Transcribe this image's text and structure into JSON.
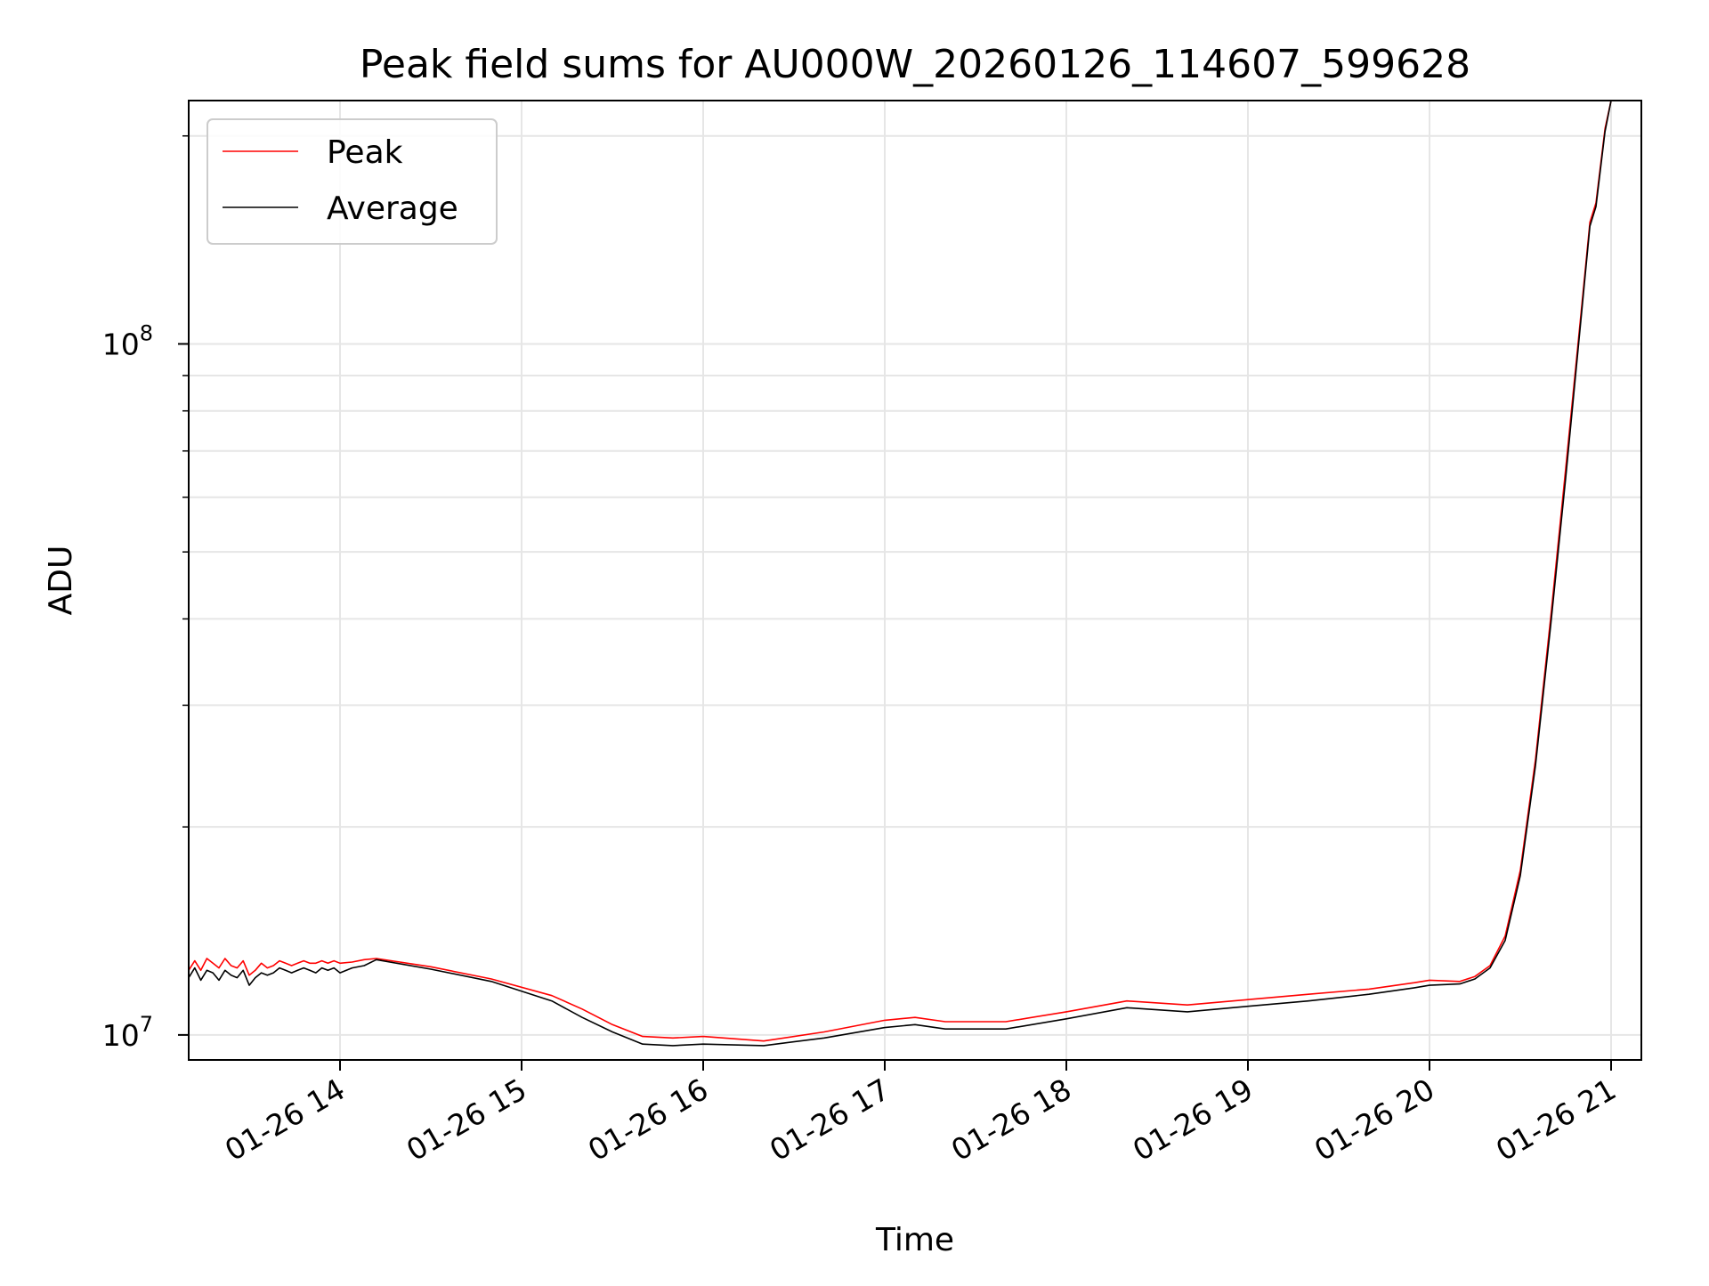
{
  "chart_data": {
    "type": "line",
    "title": "Peak field sums for AU000W_20260126_114607_599628",
    "xlabel": "Time",
    "ylabel": "ADU",
    "y_scale": "log",
    "ylim": [
      9200000,
      225000000
    ],
    "xlim": [
      "2026-01-26 13:10",
      "2026-01-26 21:10"
    ],
    "grid": true,
    "legend_position": "top-left",
    "x_tick_labels": [
      {
        "t": "2026-01-26 14:00",
        "label": "01-26 14"
      },
      {
        "t": "2026-01-26 15:00",
        "label": "01-26 15"
      },
      {
        "t": "2026-01-26 16:00",
        "label": "01-26 16"
      },
      {
        "t": "2026-01-26 17:00",
        "label": "01-26 17"
      },
      {
        "t": "2026-01-26 18:00",
        "label": "01-26 18"
      },
      {
        "t": "2026-01-26 19:00",
        "label": "01-26 19"
      },
      {
        "t": "2026-01-26 20:00",
        "label": "01-26 20"
      },
      {
        "t": "2026-01-26 21:00",
        "label": "01-26 21"
      }
    ],
    "y_major_ticks": [
      {
        "value": 10000000,
        "base": "10",
        "exp": "7"
      },
      {
        "value": 100000000,
        "base": "10",
        "exp": "8"
      }
    ],
    "y_minor_ticks": [
      20000000,
      30000000,
      40000000,
      50000000,
      60000000,
      70000000,
      80000000,
      90000000,
      200000000
    ],
    "series": [
      {
        "name": "Peak",
        "color": "#ff0000",
        "points": [
          [
            "2026-01-26 13:10",
            12400000
          ],
          [
            "2026-01-26 13:12",
            12800000
          ],
          [
            "2026-01-26 13:14",
            12400000
          ],
          [
            "2026-01-26 13:16",
            12900000
          ],
          [
            "2026-01-26 13:18",
            12700000
          ],
          [
            "2026-01-26 13:20",
            12500000
          ],
          [
            "2026-01-26 13:22",
            12900000
          ],
          [
            "2026-01-26 13:24",
            12600000
          ],
          [
            "2026-01-26 13:26",
            12500000
          ],
          [
            "2026-01-26 13:28",
            12800000
          ],
          [
            "2026-01-26 13:30",
            12200000
          ],
          [
            "2026-01-26 13:32",
            12400000
          ],
          [
            "2026-01-26 13:34",
            12700000
          ],
          [
            "2026-01-26 13:36",
            12500000
          ],
          [
            "2026-01-26 13:38",
            12600000
          ],
          [
            "2026-01-26 13:40",
            12800000
          ],
          [
            "2026-01-26 13:42",
            12700000
          ],
          [
            "2026-01-26 13:44",
            12600000
          ],
          [
            "2026-01-26 13:46",
            12700000
          ],
          [
            "2026-01-26 13:48",
            12800000
          ],
          [
            "2026-01-26 13:50",
            12700000
          ],
          [
            "2026-01-26 13:52",
            12700000
          ],
          [
            "2026-01-26 13:54",
            12800000
          ],
          [
            "2026-01-26 13:56",
            12700000
          ],
          [
            "2026-01-26 13:58",
            12800000
          ],
          [
            "2026-01-26 14:00",
            12700000
          ],
          [
            "2026-01-26 14:04",
            12750000
          ],
          [
            "2026-01-26 14:08",
            12850000
          ],
          [
            "2026-01-26 14:12",
            12900000
          ],
          [
            "2026-01-26 14:30",
            12550000
          ],
          [
            "2026-01-26 14:50",
            12050000
          ],
          [
            "2026-01-26 15:10",
            11400000
          ],
          [
            "2026-01-26 15:20",
            10900000
          ],
          [
            "2026-01-26 15:30",
            10350000
          ],
          [
            "2026-01-26 15:40",
            9950000
          ],
          [
            "2026-01-26 15:50",
            9900000
          ],
          [
            "2026-01-26 16:00",
            9950000
          ],
          [
            "2026-01-26 16:20",
            9800000
          ],
          [
            "2026-01-26 16:40",
            10100000
          ],
          [
            "2026-01-26 17:00",
            10500000
          ],
          [
            "2026-01-26 17:10",
            10600000
          ],
          [
            "2026-01-26 17:20",
            10450000
          ],
          [
            "2026-01-26 17:40",
            10450000
          ],
          [
            "2026-01-26 18:00",
            10800000
          ],
          [
            "2026-01-26 18:20",
            11200000
          ],
          [
            "2026-01-26 18:40",
            11050000
          ],
          [
            "2026-01-26 19:00",
            11250000
          ],
          [
            "2026-01-26 19:20",
            11450000
          ],
          [
            "2026-01-26 19:40",
            11650000
          ],
          [
            "2026-01-26 19:55",
            11900000
          ],
          [
            "2026-01-26 20:00",
            12000000
          ],
          [
            "2026-01-26 20:10",
            11950000
          ],
          [
            "2026-01-26 20:15",
            12150000
          ],
          [
            "2026-01-26 20:20",
            12600000
          ],
          [
            "2026-01-26 20:25",
            13900000
          ],
          [
            "2026-01-26 20:30",
            17300000
          ],
          [
            "2026-01-26 20:35",
            25000000
          ],
          [
            "2026-01-26 20:40",
            40000000
          ],
          [
            "2026-01-26 20:45",
            66000000
          ],
          [
            "2026-01-26 20:50",
            110000000
          ],
          [
            "2026-01-26 20:53",
            150000000
          ],
          [
            "2026-01-26 20:55",
            160000000
          ],
          [
            "2026-01-26 20:58",
            205000000
          ],
          [
            "2026-01-26 21:00",
            225000000
          ]
        ]
      },
      {
        "name": "Average",
        "color": "#000000",
        "points": [
          [
            "2026-01-26 13:10",
            12100000
          ],
          [
            "2026-01-26 13:12",
            12500000
          ],
          [
            "2026-01-26 13:14",
            12000000
          ],
          [
            "2026-01-26 13:16",
            12400000
          ],
          [
            "2026-01-26 13:18",
            12300000
          ],
          [
            "2026-01-26 13:20",
            12000000
          ],
          [
            "2026-01-26 13:22",
            12400000
          ],
          [
            "2026-01-26 13:24",
            12200000
          ],
          [
            "2026-01-26 13:26",
            12100000
          ],
          [
            "2026-01-26 13:28",
            12400000
          ],
          [
            "2026-01-26 13:30",
            11800000
          ],
          [
            "2026-01-26 13:32",
            12100000
          ],
          [
            "2026-01-26 13:34",
            12300000
          ],
          [
            "2026-01-26 13:36",
            12200000
          ],
          [
            "2026-01-26 13:38",
            12300000
          ],
          [
            "2026-01-26 13:40",
            12500000
          ],
          [
            "2026-01-26 13:42",
            12400000
          ],
          [
            "2026-01-26 13:44",
            12300000
          ],
          [
            "2026-01-26 13:46",
            12400000
          ],
          [
            "2026-01-26 13:48",
            12500000
          ],
          [
            "2026-01-26 13:50",
            12400000
          ],
          [
            "2026-01-26 13:52",
            12300000
          ],
          [
            "2026-01-26 13:54",
            12500000
          ],
          [
            "2026-01-26 13:56",
            12400000
          ],
          [
            "2026-01-26 13:58",
            12500000
          ],
          [
            "2026-01-26 14:00",
            12300000
          ],
          [
            "2026-01-26 14:04",
            12500000
          ],
          [
            "2026-01-26 14:08",
            12600000
          ],
          [
            "2026-01-26 14:12",
            12850000
          ],
          [
            "2026-01-26 14:30",
            12450000
          ],
          [
            "2026-01-26 14:50",
            11950000
          ],
          [
            "2026-01-26 15:10",
            11200000
          ],
          [
            "2026-01-26 15:20",
            10600000
          ],
          [
            "2026-01-26 15:30",
            10100000
          ],
          [
            "2026-01-26 15:40",
            9700000
          ],
          [
            "2026-01-26 15:50",
            9650000
          ],
          [
            "2026-01-26 16:00",
            9700000
          ],
          [
            "2026-01-26 16:20",
            9650000
          ],
          [
            "2026-01-26 16:40",
            9900000
          ],
          [
            "2026-01-26 17:00",
            10250000
          ],
          [
            "2026-01-26 17:10",
            10350000
          ],
          [
            "2026-01-26 17:20",
            10200000
          ],
          [
            "2026-01-26 17:40",
            10200000
          ],
          [
            "2026-01-26 18:00",
            10550000
          ],
          [
            "2026-01-26 18:20",
            10950000
          ],
          [
            "2026-01-26 18:40",
            10800000
          ],
          [
            "2026-01-26 19:00",
            11000000
          ],
          [
            "2026-01-26 19:20",
            11200000
          ],
          [
            "2026-01-26 19:40",
            11450000
          ],
          [
            "2026-01-26 19:55",
            11700000
          ],
          [
            "2026-01-26 20:00",
            11800000
          ],
          [
            "2026-01-26 20:10",
            11850000
          ],
          [
            "2026-01-26 20:15",
            12050000
          ],
          [
            "2026-01-26 20:20",
            12500000
          ],
          [
            "2026-01-26 20:25",
            13700000
          ],
          [
            "2026-01-26 20:30",
            17000000
          ],
          [
            "2026-01-26 20:35",
            24500000
          ],
          [
            "2026-01-26 20:40",
            39000000
          ],
          [
            "2026-01-26 20:45",
            64000000
          ],
          [
            "2026-01-26 20:50",
            108000000
          ],
          [
            "2026-01-26 20:53",
            148000000
          ],
          [
            "2026-01-26 20:55",
            158000000
          ],
          [
            "2026-01-26 20:58",
            203000000
          ],
          [
            "2026-01-26 21:00",
            225000000
          ]
        ]
      }
    ]
  }
}
